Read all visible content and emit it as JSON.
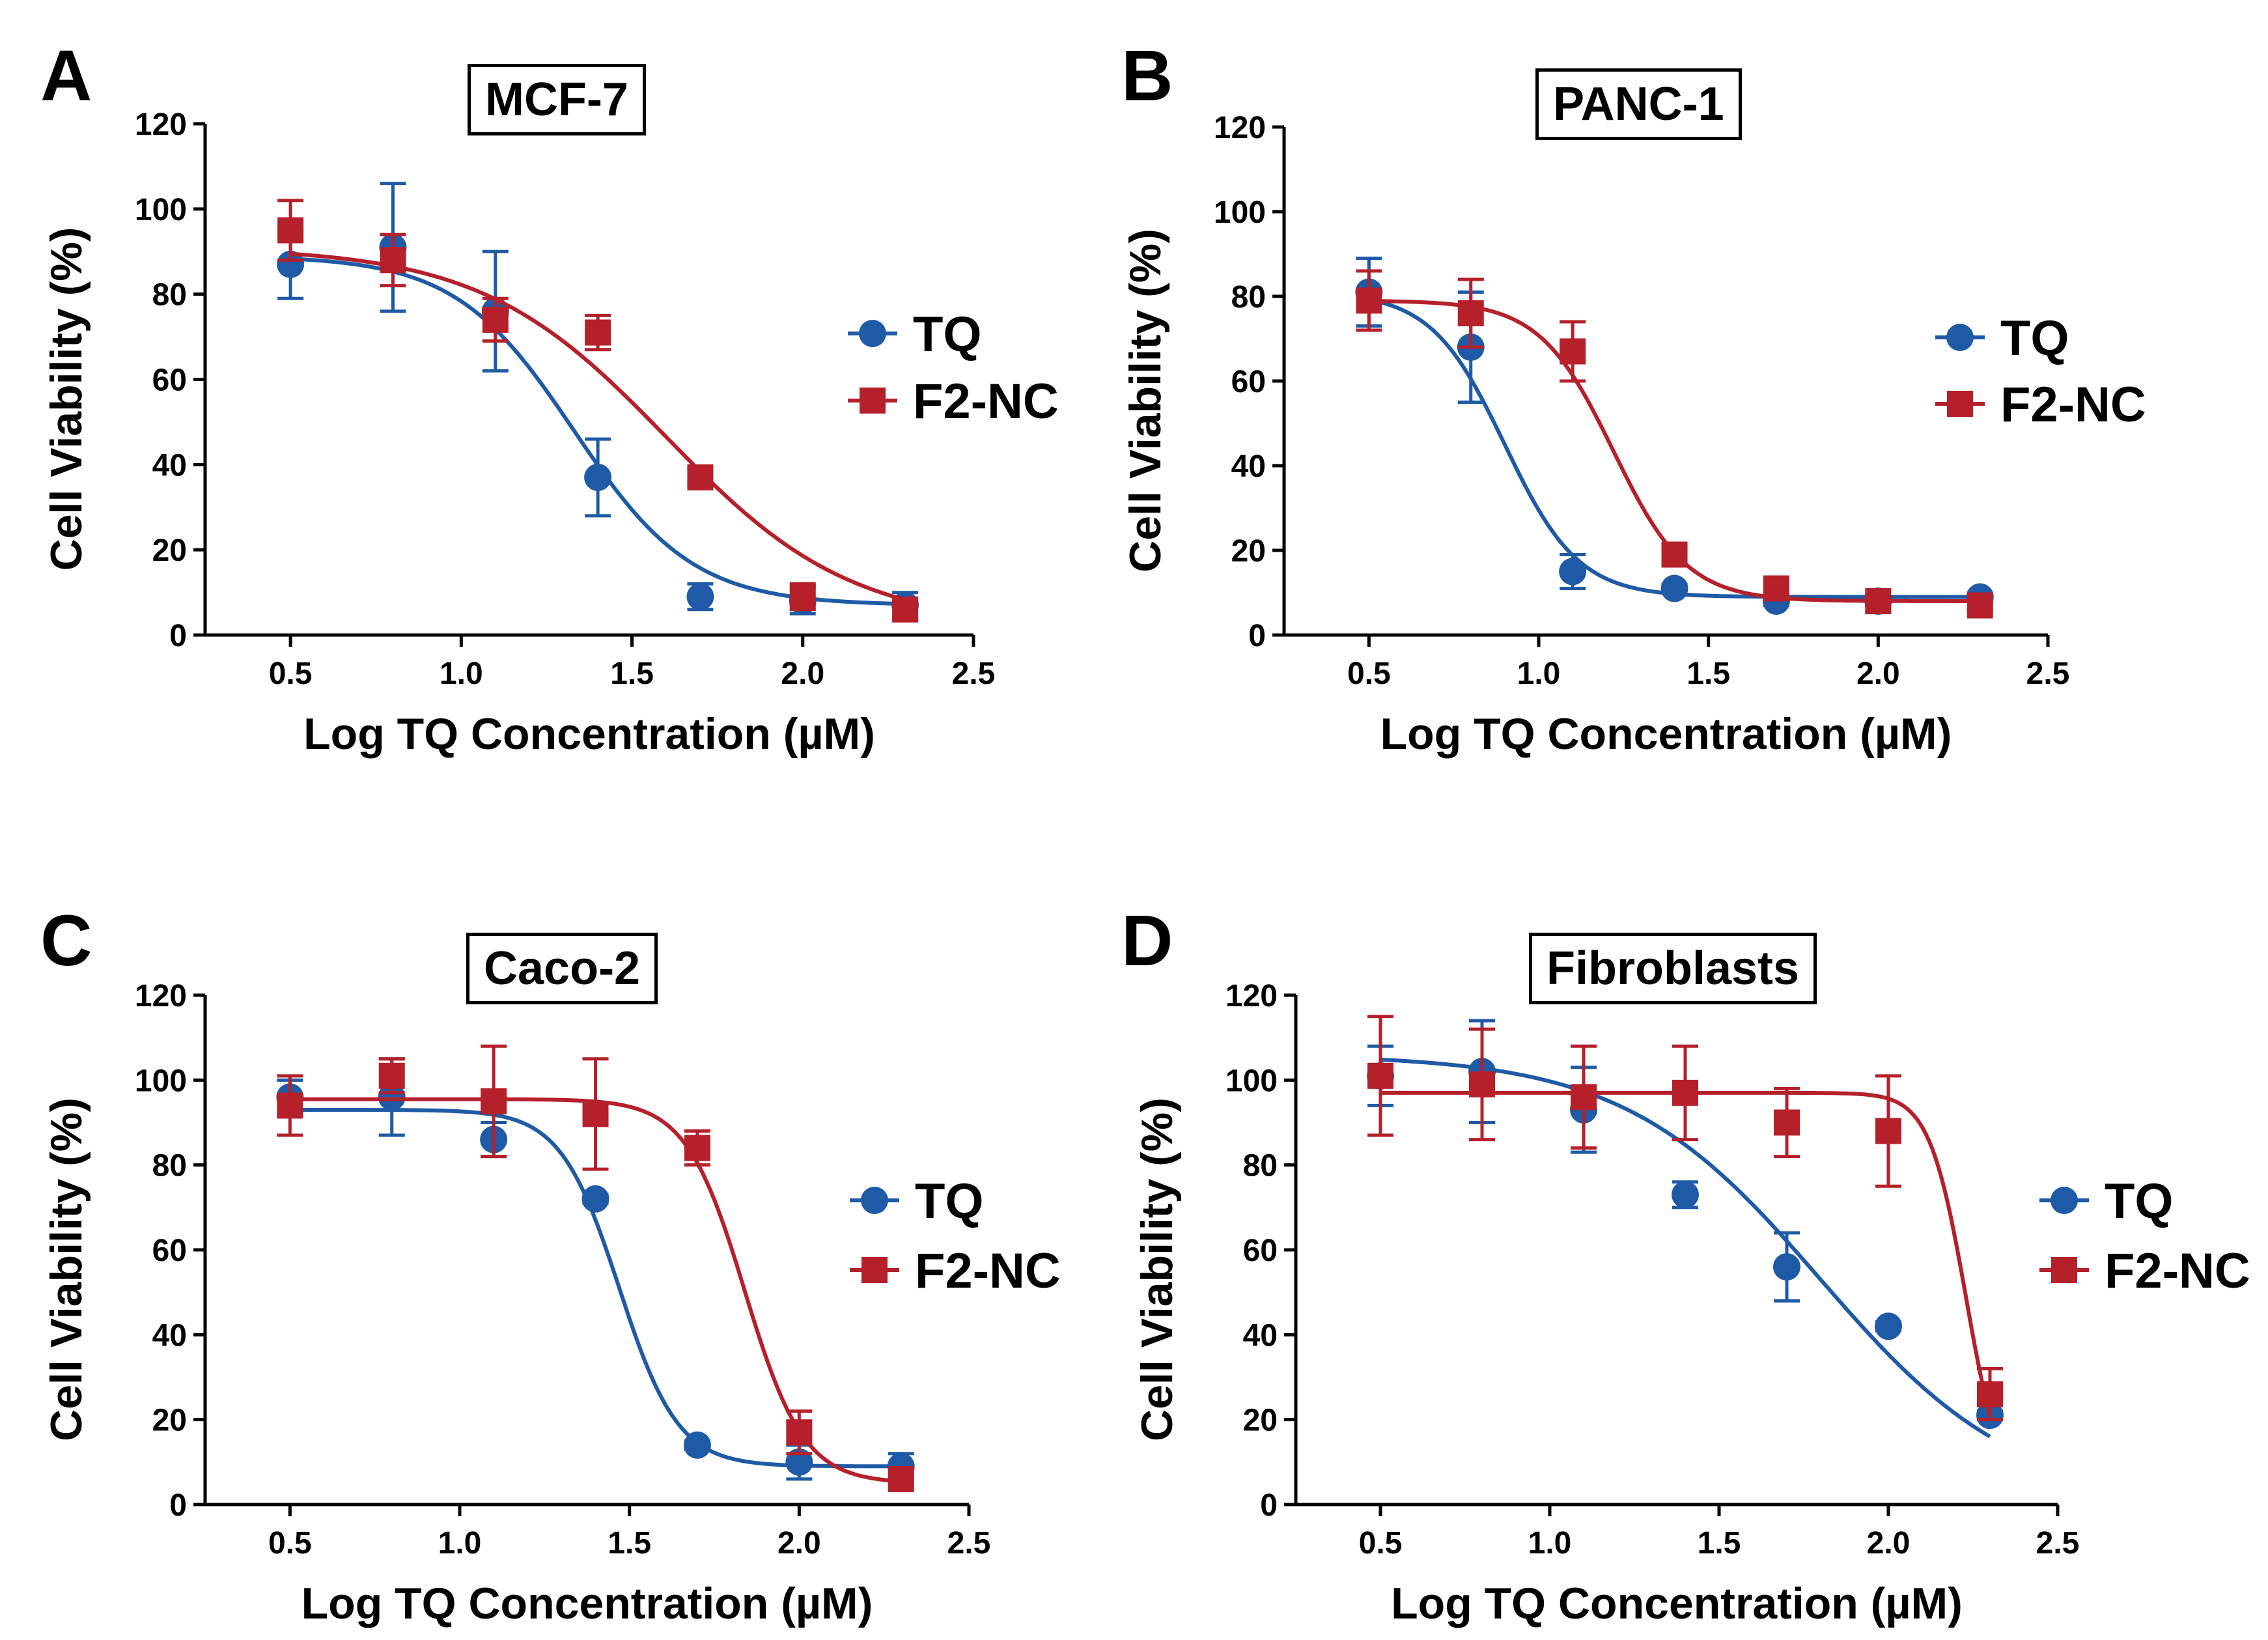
{
  "colors": {
    "tq": "#1f5aa6",
    "f2nc": "#b5202b",
    "axis": "#000000"
  },
  "chart_data": [
    {
      "panel": "A",
      "title": "MCF-7",
      "type": "scatter",
      "xlabel": "Log TQ Concentration (µM)",
      "ylabel": "Cell Viability (%)",
      "xlim": [
        0.25,
        2.5
      ],
      "ylim": [
        0,
        120
      ],
      "xticks": [
        "0.5",
        "1.0",
        "1.5",
        "2.0",
        "2.5"
      ],
      "yticks": [
        "0",
        "20",
        "40",
        "60",
        "80",
        "100",
        "120"
      ],
      "legend": "right",
      "series": [
        {
          "name": "TQ",
          "marker": "circle",
          "x": [
            0.5,
            0.8,
            1.1,
            1.4,
            1.7,
            2.0,
            2.3
          ],
          "y": [
            87,
            91,
            76,
            37,
            9,
            8,
            7
          ],
          "err": [
            8,
            15,
            14,
            9,
            3,
            3,
            3
          ],
          "fit": {
            "top": 89,
            "bottom": 7,
            "logEC50": 1.33,
            "hill": 2.5
          }
        },
        {
          "name": "F2-NC",
          "marker": "square",
          "x": [
            0.5,
            0.8,
            1.1,
            1.4,
            1.7,
            2.0,
            2.3
          ],
          "y": [
            95,
            88,
            74,
            71,
            37,
            9,
            6
          ],
          "err": [
            7,
            6,
            5,
            4,
            2,
            3,
            2
          ],
          "fit": {
            "top": 91,
            "bottom": 2,
            "logEC50": 1.6,
            "hill": 1.6
          }
        }
      ]
    },
    {
      "panel": "B",
      "title": "PANC-1",
      "type": "scatter",
      "xlabel": "Log TQ Concentration (µM)",
      "ylabel": "Cell Viability (%)",
      "xlim": [
        0.25,
        2.5
      ],
      "ylim": [
        0,
        120
      ],
      "xticks": [
        "0.5",
        "1.0",
        "1.5",
        "2.0",
        "2.5"
      ],
      "yticks": [
        "0",
        "20",
        "40",
        "60",
        "80",
        "100",
        "120"
      ],
      "legend": "right",
      "series": [
        {
          "name": "TQ",
          "marker": "circle",
          "x": [
            0.5,
            0.8,
            1.1,
            1.4,
            1.7,
            2.0,
            2.3
          ],
          "y": [
            81,
            68,
            15,
            11,
            8,
            8,
            9
          ],
          "err": [
            8,
            13,
            4,
            1,
            1,
            1,
            1
          ],
          "fit": {
            "top": 81,
            "bottom": 9,
            "logEC50": 0.9,
            "hill": 4.0
          }
        },
        {
          "name": "F2-NC",
          "marker": "square",
          "x": [
            0.5,
            0.8,
            1.1,
            1.4,
            1.7,
            2.0,
            2.3
          ],
          "y": [
            79,
            76,
            67,
            19,
            11,
            8,
            7
          ],
          "err": [
            7,
            8,
            7,
            2,
            1,
            1,
            1
          ],
          "fit": {
            "top": 79,
            "bottom": 8,
            "logEC50": 1.22,
            "hill": 4.0
          }
        }
      ]
    },
    {
      "panel": "C",
      "title": "Caco-2",
      "type": "scatter",
      "xlabel": "Log TQ Concentration (µM)",
      "ylabel": "Cell Viability (%)",
      "xlim": [
        0.25,
        2.5
      ],
      "ylim": [
        0,
        120
      ],
      "xticks": [
        "0.5",
        "1.0",
        "1.5",
        "2.0",
        "2.5"
      ],
      "yticks": [
        "0",
        "20",
        "40",
        "60",
        "80",
        "100",
        "120"
      ],
      "legend": "right",
      "series": [
        {
          "name": "TQ",
          "marker": "circle",
          "x": [
            0.5,
            0.8,
            1.1,
            1.4,
            1.7,
            2.0,
            2.3
          ],
          "y": [
            96,
            96,
            86,
            72,
            14,
            10,
            9
          ],
          "err": [
            4,
            9,
            4,
            1,
            1,
            4,
            3
          ],
          "fit": {
            "top": 93,
            "bottom": 9,
            "logEC50": 1.47,
            "hill": 5.0
          }
        },
        {
          "name": "F2-NC",
          "marker": "square",
          "x": [
            0.5,
            0.8,
            1.1,
            1.4,
            1.7,
            2.0,
            2.3
          ],
          "y": [
            94,
            101,
            95,
            92,
            84,
            17,
            6
          ],
          "err": [
            7,
            4,
            13,
            13,
            4,
            5,
            1
          ],
          "fit": {
            "top": 95.5,
            "bottom": 5,
            "logEC50": 1.84,
            "hill": 5.0
          }
        }
      ]
    },
    {
      "panel": "D",
      "title": "Fibroblasts",
      "type": "scatter",
      "xlabel": "Log TQ Concentration (µM)",
      "ylabel": "Cell Viability (%)",
      "xlim": [
        0.25,
        2.5
      ],
      "ylim": [
        0,
        120
      ],
      "xticks": [
        "0.5",
        "1.0",
        "1.5",
        "2.0",
        "2.5"
      ],
      "yticks": [
        "0",
        "20",
        "40",
        "60",
        "80",
        "100",
        "120"
      ],
      "legend": "right",
      "series": [
        {
          "name": "TQ",
          "marker": "circle",
          "x": [
            0.5,
            0.8,
            1.1,
            1.4,
            1.7,
            2.0,
            2.3
          ],
          "y": [
            101,
            102,
            93,
            73,
            56,
            42,
            21
          ],
          "err": [
            7,
            12,
            10,
            3,
            8,
            1,
            1
          ],
          "fit": {
            "top": 106,
            "bottom": 0,
            "logEC50": 1.8,
            "hill": 1.5
          }
        },
        {
          "name": "F2-NC",
          "marker": "square",
          "x": [
            0.5,
            0.8,
            1.1,
            1.4,
            1.7,
            2.0,
            2.3
          ],
          "y": [
            101,
            99,
            96,
            97,
            90,
            88,
            26
          ],
          "err": [
            14,
            13,
            12,
            11,
            8,
            13,
            6
          ],
          "fit": {
            "top": 97,
            "bottom": 0,
            "logEC50": 2.23,
            "hill": 8.0
          }
        }
      ]
    }
  ]
}
